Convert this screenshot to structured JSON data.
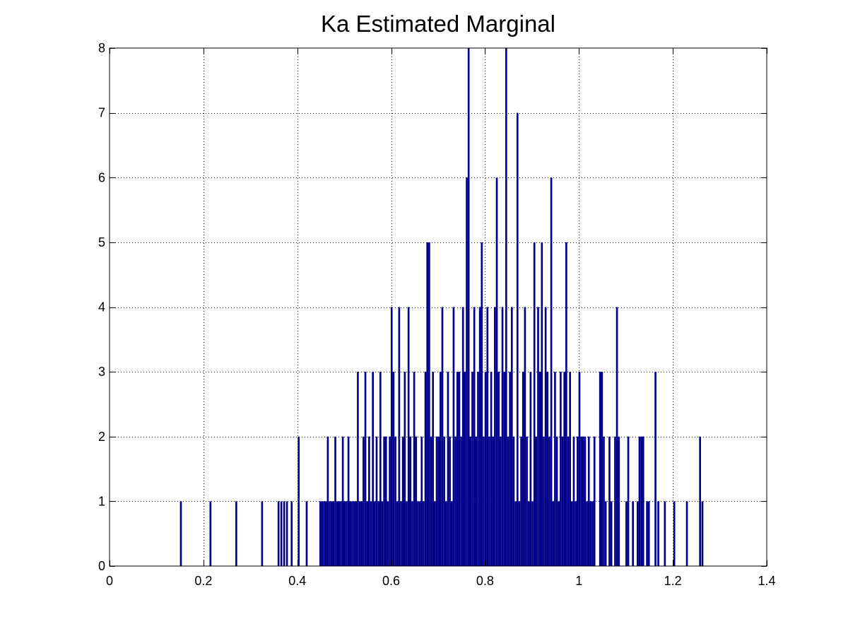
{
  "chart_data": {
    "type": "bar",
    "title": "Ka Estimated Marginal",
    "xlabel": "",
    "ylabel": "",
    "xlim": [
      0,
      1.4
    ],
    "ylim": [
      0,
      8
    ],
    "x_ticks": [
      "0",
      "0.2",
      "0.4",
      "0.6",
      "0.8",
      "1",
      "1.2",
      "1.4"
    ],
    "y_ticks": [
      "0",
      "1",
      "2",
      "3",
      "4",
      "5",
      "6",
      "7",
      "8"
    ],
    "grid": true,
    "bar_color": "#00008B",
    "bin_width": 0.004,
    "x": [
      0.152,
      0.215,
      0.27,
      0.325,
      0.36,
      0.366,
      0.372,
      0.378,
      0.388,
      0.403,
      0.42,
      0.449,
      0.453,
      0.457,
      0.461,
      0.465,
      0.469,
      0.473,
      0.477,
      0.481,
      0.485,
      0.489,
      0.493,
      0.497,
      0.501,
      0.505,
      0.509,
      0.513,
      0.517,
      0.521,
      0.525,
      0.529,
      0.533,
      0.537,
      0.541,
      0.545,
      0.549,
      0.553,
      0.557,
      0.561,
      0.565,
      0.569,
      0.573,
      0.577,
      0.581,
      0.585,
      0.589,
      0.593,
      0.597,
      0.601,
      0.605,
      0.609,
      0.613,
      0.617,
      0.621,
      0.625,
      0.629,
      0.633,
      0.637,
      0.641,
      0.645,
      0.649,
      0.653,
      0.657,
      0.661,
      0.665,
      0.669,
      0.673,
      0.677,
      0.681,
      0.685,
      0.689,
      0.693,
      0.697,
      0.701,
      0.705,
      0.709,
      0.713,
      0.717,
      0.721,
      0.725,
      0.729,
      0.733,
      0.737,
      0.741,
      0.745,
      0.749,
      0.753,
      0.757,
      0.761,
      0.765,
      0.769,
      0.773,
      0.777,
      0.781,
      0.785,
      0.789,
      0.793,
      0.797,
      0.801,
      0.805,
      0.809,
      0.813,
      0.817,
      0.821,
      0.825,
      0.829,
      0.833,
      0.837,
      0.841,
      0.845,
      0.849,
      0.853,
      0.857,
      0.861,
      0.865,
      0.869,
      0.873,
      0.877,
      0.881,
      0.885,
      0.889,
      0.893,
      0.897,
      0.901,
      0.905,
      0.909,
      0.913,
      0.917,
      0.921,
      0.925,
      0.929,
      0.933,
      0.937,
      0.941,
      0.945,
      0.949,
      0.953,
      0.957,
      0.961,
      0.965,
      0.969,
      0.973,
      0.977,
      0.981,
      0.985,
      0.989,
      0.993,
      0.997,
      1.001,
      1.005,
      1.009,
      1.013,
      1.017,
      1.021,
      1.025,
      1.029,
      1.033,
      1.045,
      1.049,
      1.053,
      1.057,
      1.065,
      1.069,
      1.077,
      1.081,
      1.085,
      1.101,
      1.105,
      1.115,
      1.125,
      1.129,
      1.133,
      1.137,
      1.145,
      1.149,
      1.163,
      1.169,
      1.183,
      1.203,
      1.23,
      1.258,
      1.263
    ],
    "values": [
      1,
      1,
      1,
      1,
      1,
      1,
      1,
      1,
      1,
      2,
      1,
      1,
      1,
      1,
      1,
      2,
      1,
      1,
      1,
      2,
      1,
      1,
      1,
      2,
      1,
      1,
      2,
      1,
      1,
      1,
      1,
      3,
      1,
      1,
      2,
      3,
      1,
      2,
      1,
      3,
      1,
      2,
      1,
      3,
      1,
      2,
      2,
      1,
      2,
      4,
      3,
      2,
      1,
      4,
      1,
      2,
      3,
      1,
      4,
      2,
      1,
      3,
      2,
      1,
      1,
      2,
      1,
      3,
      5,
      5,
      2,
      3,
      1,
      2,
      2,
      3,
      4,
      2,
      1,
      3,
      2,
      1,
      4,
      2,
      3,
      3,
      2,
      4,
      3,
      6,
      8,
      2,
      3,
      4,
      2,
      3,
      4,
      5,
      2,
      3,
      4,
      2,
      3,
      2,
      4,
      6,
      3,
      2,
      4,
      3,
      8,
      2,
      3,
      4,
      2,
      1,
      7,
      1,
      2,
      3,
      4,
      2,
      1,
      3,
      1,
      5,
      2,
      4,
      3,
      5,
      2,
      4,
      3,
      2,
      6,
      1,
      3,
      2,
      1,
      3,
      2,
      3,
      5,
      2,
      3,
      1,
      2,
      1,
      2,
      3,
      2,
      2,
      2,
      1,
      2,
      1,
      1,
      2,
      3,
      3,
      2,
      1,
      2,
      1,
      2,
      4,
      2,
      1,
      2,
      1,
      1,
      2,
      2,
      2,
      1,
      1,
      3,
      1,
      1,
      1,
      1,
      2,
      1
    ]
  }
}
